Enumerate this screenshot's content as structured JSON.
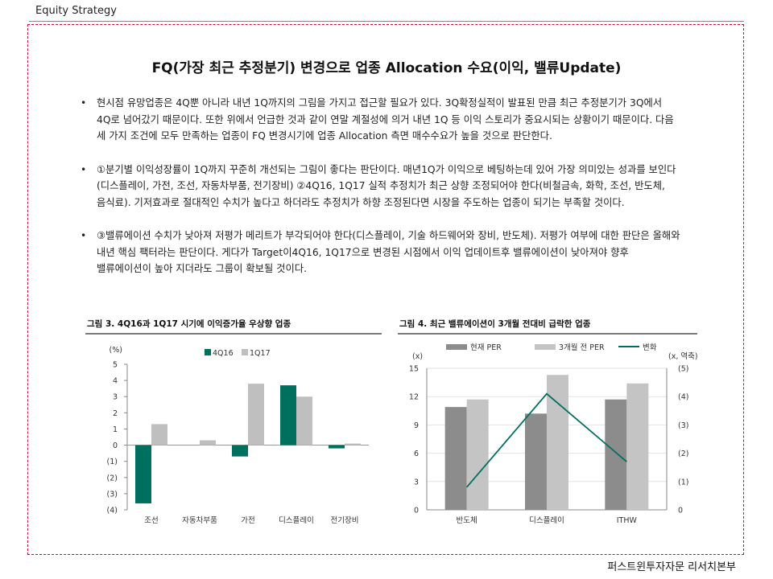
{
  "header": {
    "label": "Equity Strategy"
  },
  "title": "FQ(가장 최근 추정분기) 변경으로 업종 Allocation 수요(이익, 밸류Update)",
  "bullets": [
    {
      "text": "현시점 유망업종은 4Q뿐 아니라 내년 1Q까지의 그림을 가지고 접근할 필요가 있다. 3Q확정실적이 발표된 만큼 최근 추정분기가 3Q에서 4Q로 넘어갔기 때문이다. 또한 위에서 언급한 것과 같이 연말 계절성에 의거 내년 1Q 등 이익 스토리가 중요시되는 상황이기 때문이다. 다음 세 가지 조건에 모두 만족하는 업종이 FQ 변경시기에 업종 Allocation 측면 매수수요가 높을 것으로 판단한다."
    },
    {
      "text": "①분기별 이익성장률이 1Q까지 꾸준히 개선되는 그림이 좋다는 판단이다. 매년1Q가 이익으로 베팅하는데 있어 가장 의미있는 성과를 보인다(디스플레이, 가전, 조선, 자동차부품, 전기장비) ②4Q16, 1Q17 실적 추정치가 최근 상향 조정되어야 한다(비철금속, 화학, 조선, 반도체, 음식료). 기저효과로 절대적인 수치가 높다고 하더라도 추정치가 하향 조정된다면 시장을 주도하는 업종이 되기는 부족할 것이다."
    },
    {
      "text": "③밸류에이션 수치가 낮아져 저평가 메리트가 부각되어야 한다(디스플레이, 기술 하드웨어와 장비, 반도체). 저평가 여부에 대한 판단은 올해와 내년 핵심 팩터라는 판단이다. 게다가 Target이4Q16, 1Q17으로 변경된 시점에서 이익 업데이트후 밸류에이션이 낮아져야 향후 밸류에이션이 높아 지더라도 그룹이 확보될 것이다."
    }
  ],
  "figure3": {
    "title": "그림 3. 4Q16과 1Q17 시기에 이익증가율 우상향 업종",
    "chart_data": {
      "type": "bar",
      "categories": [
        "조선",
        "자동차부품",
        "가전",
        "디스플레이",
        "전기장비"
      ],
      "series": [
        {
          "name": "4Q16",
          "values": [
            -3.6,
            0.0,
            -0.7,
            3.7,
            -0.2
          ],
          "color": "#00705e"
        },
        {
          "name": "1Q17",
          "values": [
            1.3,
            0.3,
            3.8,
            3.0,
            0.1
          ],
          "color": "#bfbfbf"
        }
      ],
      "ylabel": "(%)",
      "ylim": [
        -4,
        5
      ],
      "yticks": [
        "5",
        "4",
        "3",
        "2",
        "1",
        "0",
        "(1)",
        "(2)",
        "(3)",
        "(4)"
      ],
      "legend": "top-center",
      "grid": false
    }
  },
  "figure4": {
    "title": "그림 4. 최근 밸류에이션이 3개월 전대비 급락한 업종",
    "chart_data": {
      "type": "bar",
      "categories": [
        "반도체",
        "디스플레이",
        "ITHW"
      ],
      "series": [
        {
          "name": "현재 PER",
          "values": [
            10.9,
            10.2,
            11.7
          ],
          "color": "#8c8c8c",
          "axis": "left"
        },
        {
          "name": "3개월 전 PER",
          "values": [
            11.7,
            14.3,
            13.4
          ],
          "color": "#c4c4c4",
          "axis": "left"
        },
        {
          "name": "변화",
          "values": [
            -0.8,
            -4.1,
            -1.7
          ],
          "color": "#00705e",
          "axis": "right",
          "type": "line"
        }
      ],
      "ylabel_left": "(x)",
      "ylabel_right": "(x, 역축)",
      "ylim_left": [
        0,
        15
      ],
      "yticks_left": [
        "15",
        "12",
        "9",
        "6",
        "3",
        "0"
      ],
      "ylim_right": [
        0,
        -5
      ],
      "yticks_right": [
        "(5)",
        "(4)",
        "(3)",
        "(2)",
        "(1)",
        "0"
      ],
      "legend": "top",
      "grid": true
    }
  },
  "footer": {
    "text": "퍼스트윈투자자문 리서치본부"
  }
}
